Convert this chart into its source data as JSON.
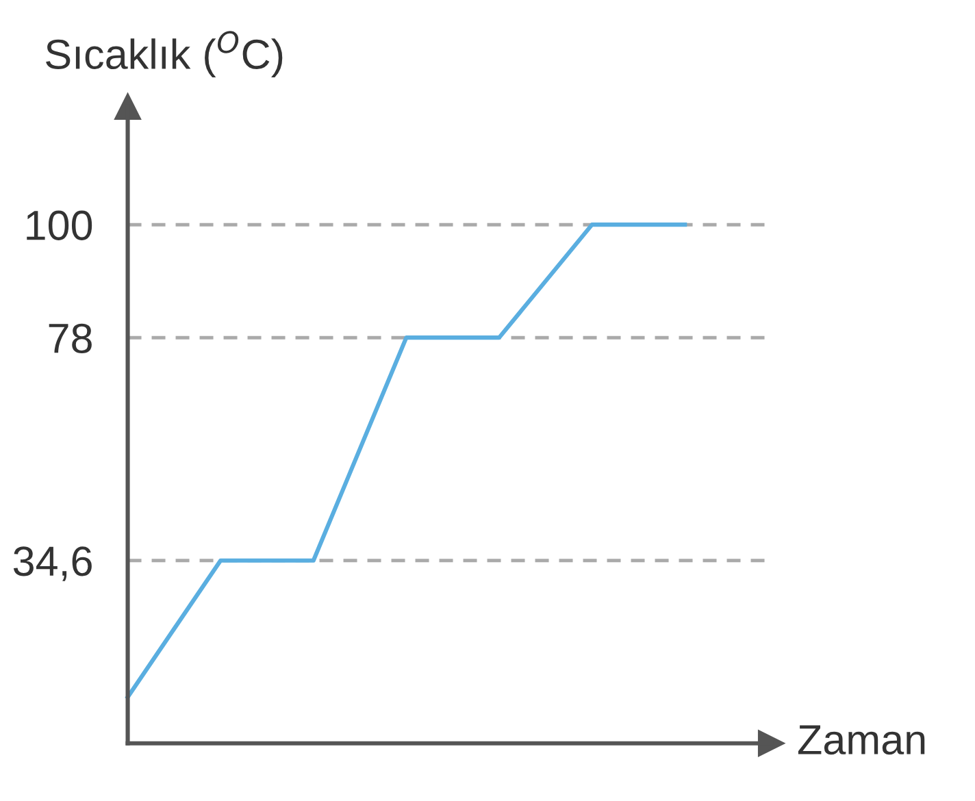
{
  "chart_data": {
    "type": "line",
    "xlabel": "Zaman",
    "ylabel": "Sıcaklık ($^{O}$C)",
    "categories": [
      null,
      null,
      null,
      null,
      null,
      null,
      null
    ],
    "series": [
      {
        "color": "#5aaee0",
        "values": [
          8,
          34.6,
          34.6,
          78,
          78,
          100,
          100
        ]
      }
    ],
    "ylim": [
      -1,
      123
    ],
    "yticks": [
      {
        "value": 34.6,
        "label": "34,6"
      },
      100,
      78
    ],
    "tick_labels": "y",
    "grid": "y",
    "marker": "none",
    "line_style": "solid"
  }
}
